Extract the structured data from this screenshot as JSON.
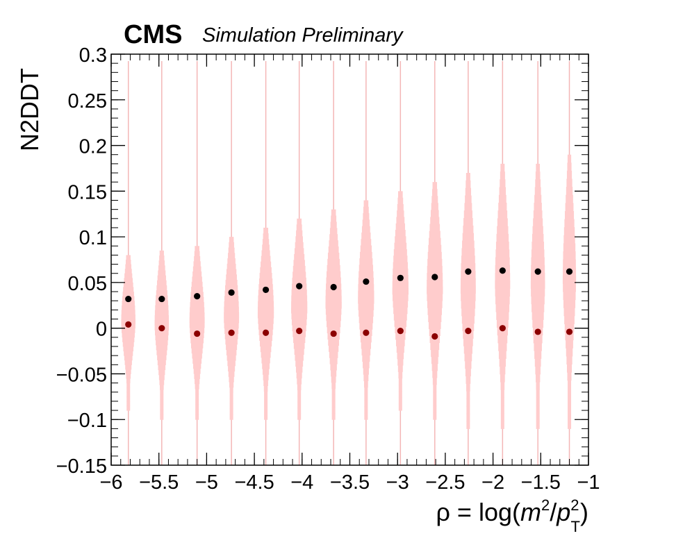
{
  "chart_data": {
    "type": "violin",
    "header": {
      "experiment": "CMS",
      "subtitle": "Simulation Preliminary"
    },
    "xlabel": "ρ = log(m²/p_T²)",
    "xlabel_parts": {
      "pre": "ρ = log(",
      "m": "m",
      "m_sup": "2",
      "slash": "/",
      "p": "p",
      "p_sup": "2",
      "p_sub": "T",
      "post": ")"
    },
    "ylabel": "N2DDT",
    "xlim": [
      -6,
      -1
    ],
    "ylim": [
      -0.15,
      0.3
    ],
    "x_ticks": [
      -6,
      -5.5,
      -5,
      -4.5,
      -4,
      -3.5,
      -3,
      -2.5,
      -2,
      -1.5,
      -1
    ],
    "x_tick_labels": [
      "−6",
      "−5.5",
      "−5",
      "−4.5",
      "−4",
      "−3.5",
      "−3",
      "−2.5",
      "−2",
      "−1.5",
      "−1"
    ],
    "y_ticks": [
      -0.15,
      -0.1,
      -0.05,
      0,
      0.05,
      0.1,
      0.15,
      0.2,
      0.25,
      0.3
    ],
    "y_tick_labels": [
      "−0.15",
      "−0.1",
      "−0.05",
      "0",
      "0.05",
      "0.1",
      "0.15",
      "0.2",
      "0.25",
      "0.3"
    ],
    "violins": [
      {
        "x": -5.82,
        "ymin": -0.15,
        "ymax": 0.09,
        "width": 0.15,
        "core_low": -0.09,
        "core_high": 0.08
      },
      {
        "x": -5.47,
        "ymin": -0.14,
        "ymax": 0.092,
        "width": 0.15,
        "core_low": -0.1,
        "core_high": 0.085
      },
      {
        "x": -5.1,
        "ymin": -0.15,
        "ymax": 0.1,
        "width": 0.16,
        "core_low": -0.1,
        "core_high": 0.09
      },
      {
        "x": -4.74,
        "ymin": -0.15,
        "ymax": 0.115,
        "width": 0.16,
        "core_low": -0.1,
        "core_high": 0.1
      },
      {
        "x": -4.38,
        "ymin": -0.15,
        "ymax": 0.12,
        "width": 0.17,
        "core_low": -0.1,
        "core_high": 0.11
      },
      {
        "x": -4.03,
        "ymin": -0.15,
        "ymax": 0.13,
        "width": 0.17,
        "core_low": -0.1,
        "core_high": 0.12
      },
      {
        "x": -3.67,
        "ymin": -0.14,
        "ymax": 0.14,
        "width": 0.17,
        "core_low": -0.1,
        "core_high": 0.13
      },
      {
        "x": -3.33,
        "ymin": -0.14,
        "ymax": 0.16,
        "width": 0.17,
        "core_low": -0.1,
        "core_high": 0.14
      },
      {
        "x": -2.97,
        "ymin": -0.12,
        "ymax": 0.17,
        "width": 0.17,
        "core_low": -0.09,
        "core_high": 0.15
      },
      {
        "x": -2.61,
        "ymin": -0.13,
        "ymax": 0.18,
        "width": 0.17,
        "core_low": -0.1,
        "core_high": 0.16
      },
      {
        "x": -2.26,
        "ymin": -0.15,
        "ymax": 0.19,
        "width": 0.16,
        "core_low": -0.11,
        "core_high": 0.17
      },
      {
        "x": -1.9,
        "ymin": -0.15,
        "ymax": 0.2,
        "width": 0.16,
        "core_low": -0.11,
        "core_high": 0.18
      },
      {
        "x": -1.53,
        "ymin": -0.15,
        "ymax": 0.205,
        "width": 0.15,
        "core_low": -0.11,
        "core_high": 0.18
      },
      {
        "x": -1.2,
        "ymin": -0.15,
        "ymax": 0.21,
        "width": 0.14,
        "core_low": -0.11,
        "core_high": 0.19
      }
    ],
    "series": [
      {
        "color": "#000000",
        "x": [
          -5.82,
          -5.47,
          -5.1,
          -4.74,
          -4.38,
          -4.03,
          -3.67,
          -3.33,
          -2.97,
          -2.61,
          -2.26,
          -1.9,
          -1.53,
          -1.2
        ],
        "y": [
          0.032,
          0.032,
          0.035,
          0.039,
          0.042,
          0.046,
          0.045,
          0.051,
          0.055,
          0.056,
          0.062,
          0.063,
          0.062,
          0.062
        ]
      },
      {
        "color": "#8b0000",
        "x": [
          -5.82,
          -5.47,
          -5.1,
          -4.74,
          -4.38,
          -4.03,
          -3.67,
          -3.33,
          -2.97,
          -2.61,
          -2.26,
          -1.9,
          -1.53,
          -1.2
        ],
        "y": [
          0.004,
          0.0,
          -0.006,
          -0.005,
          -0.005,
          -0.003,
          -0.006,
          -0.005,
          -0.003,
          -0.009,
          -0.003,
          0.0,
          -0.004,
          -0.004
        ]
      }
    ],
    "colors": {
      "violin_fill": "#ffcccc",
      "violin_line": "#f4b6b6",
      "frame": "#000000"
    },
    "grid": false,
    "legend": "none"
  }
}
